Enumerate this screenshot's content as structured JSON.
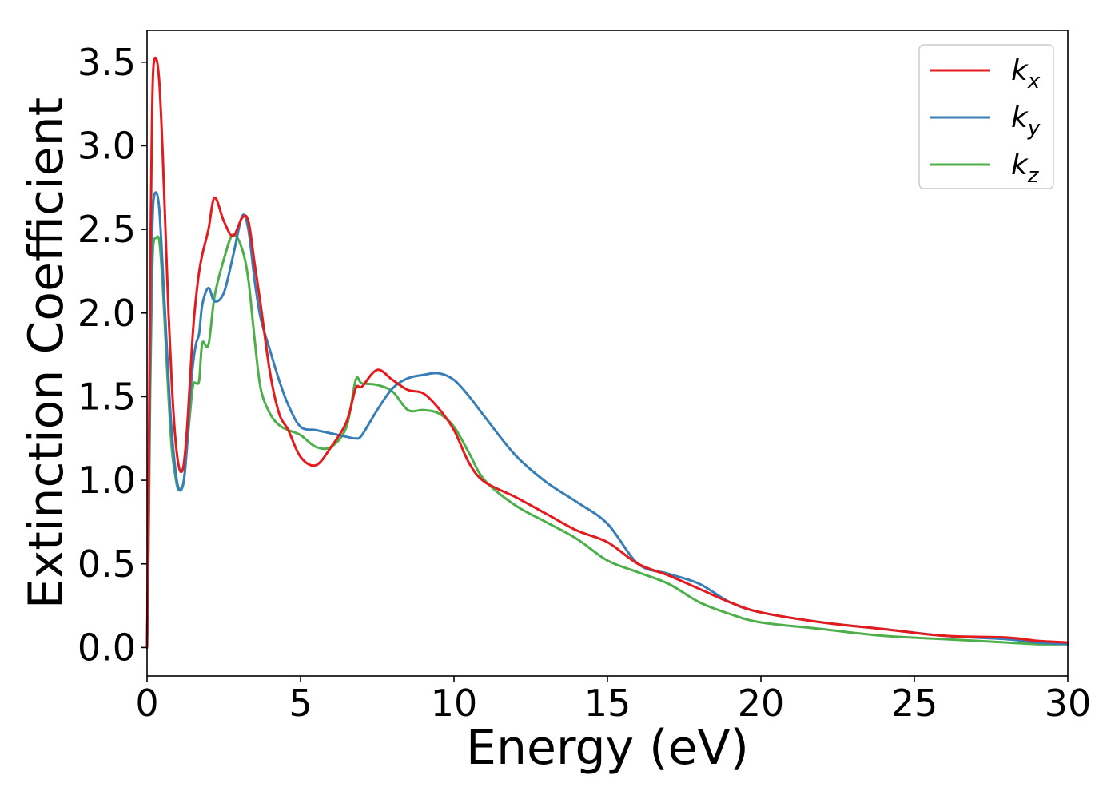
{
  "chart_data": {
    "type": "line",
    "title": "",
    "xlabel": "Energy (eV)",
    "ylabel": "Extinction Coefficient",
    "xlim": [
      0,
      30
    ],
    "ylim": [
      -0.17,
      3.69
    ],
    "xticks": [
      0,
      5,
      10,
      15,
      20,
      25,
      30
    ],
    "xtick_labels": [
      "0",
      "5",
      "10",
      "15",
      "20",
      "25",
      "30"
    ],
    "yticks": [
      0.0,
      0.5,
      1.0,
      1.5,
      2.0,
      2.5,
      3.0,
      3.5
    ],
    "ytick_labels": [
      "0.0",
      "0.5",
      "1.0",
      "1.5",
      "2.0",
      "2.5",
      "3.0",
      "3.5"
    ],
    "grid": false,
    "legend_position": "top-right",
    "series": [
      {
        "name": "k_x",
        "legend_base": "k",
        "legend_sub": "x",
        "color": "#e41a1c",
        "x": [
          0,
          0.05,
          0.1,
          0.15,
          0.2,
          0.3,
          0.4,
          0.5,
          0.6,
          0.7,
          0.8,
          0.9,
          1.0,
          1.1,
          1.2,
          1.3,
          1.4,
          1.5,
          1.6,
          1.7,
          1.8,
          2.0,
          2.2,
          2.5,
          2.8,
          3.1,
          3.3,
          3.5,
          3.7,
          4.0,
          4.3,
          4.6,
          5.0,
          5.5,
          6.0,
          6.5,
          6.8,
          7.0,
          7.5,
          8.0,
          8.5,
          9.0,
          9.5,
          10.0,
          10.5,
          11.0,
          12.0,
          13.0,
          14.0,
          15.0,
          16.0,
          17.0,
          18.0,
          19.0,
          20.0,
          22.0,
          24.0,
          26.0,
          28.0,
          29.0,
          30.0
        ],
        "y": [
          0.0,
          0.9,
          2.2,
          3.0,
          3.45,
          3.52,
          3.38,
          3.0,
          2.5,
          2.0,
          1.6,
          1.3,
          1.12,
          1.05,
          1.1,
          1.3,
          1.6,
          1.9,
          2.1,
          2.25,
          2.35,
          2.5,
          2.69,
          2.55,
          2.46,
          2.57,
          2.55,
          2.3,
          2.05,
          1.65,
          1.4,
          1.3,
          1.14,
          1.09,
          1.2,
          1.35,
          1.55,
          1.56,
          1.66,
          1.6,
          1.54,
          1.52,
          1.43,
          1.3,
          1.1,
          0.99,
          0.9,
          0.8,
          0.7,
          0.63,
          0.5,
          0.43,
          0.35,
          0.27,
          0.21,
          0.15,
          0.11,
          0.07,
          0.06,
          0.04,
          0.03
        ]
      },
      {
        "name": "k_y",
        "legend_base": "k",
        "legend_sub": "y",
        "color": "#377eb8",
        "x": [
          0,
          0.05,
          0.1,
          0.15,
          0.2,
          0.3,
          0.4,
          0.5,
          0.6,
          0.7,
          0.8,
          0.9,
          1.0,
          1.1,
          1.2,
          1.3,
          1.4,
          1.5,
          1.6,
          1.7,
          1.8,
          2.0,
          2.2,
          2.5,
          2.8,
          3.1,
          3.3,
          3.5,
          3.7,
          4.0,
          4.3,
          4.6,
          5.0,
          5.5,
          6.0,
          6.5,
          6.8,
          7.0,
          7.5,
          8.0,
          8.5,
          9.0,
          9.5,
          10.0,
          10.5,
          11.0,
          12.0,
          13.0,
          14.0,
          15.0,
          16.0,
          17.0,
          18.0,
          19.0,
          20.0,
          22.0,
          24.0,
          26.0,
          28.0,
          29.0,
          30.0
        ],
        "y": [
          0.0,
          0.7,
          1.7,
          2.3,
          2.65,
          2.72,
          2.62,
          2.3,
          1.95,
          1.6,
          1.3,
          1.1,
          0.97,
          0.94,
          1.0,
          1.2,
          1.5,
          1.7,
          1.82,
          1.88,
          2.05,
          2.15,
          2.07,
          2.12,
          2.34,
          2.58,
          2.5,
          2.2,
          1.97,
          1.78,
          1.6,
          1.45,
          1.32,
          1.3,
          1.28,
          1.26,
          1.25,
          1.27,
          1.42,
          1.55,
          1.61,
          1.63,
          1.64,
          1.6,
          1.5,
          1.38,
          1.15,
          0.99,
          0.87,
          0.74,
          0.5,
          0.44,
          0.38,
          0.27,
          0.21,
          0.15,
          0.11,
          0.07,
          0.05,
          0.03,
          0.02
        ]
      },
      {
        "name": "k_z",
        "legend_base": "k",
        "legend_sub": "z",
        "color": "#4daf4a",
        "x": [
          0,
          0.05,
          0.1,
          0.15,
          0.2,
          0.3,
          0.4,
          0.5,
          0.6,
          0.7,
          0.8,
          0.9,
          1.0,
          1.1,
          1.2,
          1.3,
          1.4,
          1.5,
          1.6,
          1.7,
          1.8,
          2.0,
          2.2,
          2.5,
          2.8,
          3.1,
          3.3,
          3.5,
          3.7,
          4.0,
          4.3,
          4.6,
          5.0,
          5.5,
          6.0,
          6.5,
          6.8,
          7.0,
          7.5,
          8.0,
          8.5,
          9.0,
          9.5,
          10.0,
          10.5,
          11.0,
          12.0,
          13.0,
          14.0,
          15.0,
          16.0,
          17.0,
          18.0,
          19.0,
          20.0,
          22.0,
          24.0,
          26.0,
          28.0,
          29.0,
          30.0
        ],
        "y": [
          0.0,
          0.6,
          1.5,
          2.1,
          2.4,
          2.45,
          2.43,
          2.2,
          1.85,
          1.5,
          1.2,
          1.05,
          0.95,
          0.95,
          1.0,
          1.2,
          1.4,
          1.57,
          1.58,
          1.6,
          1.82,
          1.81,
          2.1,
          2.32,
          2.47,
          2.38,
          2.2,
          1.85,
          1.55,
          1.4,
          1.33,
          1.3,
          1.27,
          1.2,
          1.2,
          1.32,
          1.6,
          1.58,
          1.57,
          1.53,
          1.42,
          1.42,
          1.4,
          1.32,
          1.16,
          1.0,
          0.85,
          0.75,
          0.65,
          0.52,
          0.45,
          0.38,
          0.27,
          0.2,
          0.15,
          0.11,
          0.07,
          0.05,
          0.03,
          0.02,
          0.02
        ]
      }
    ]
  }
}
